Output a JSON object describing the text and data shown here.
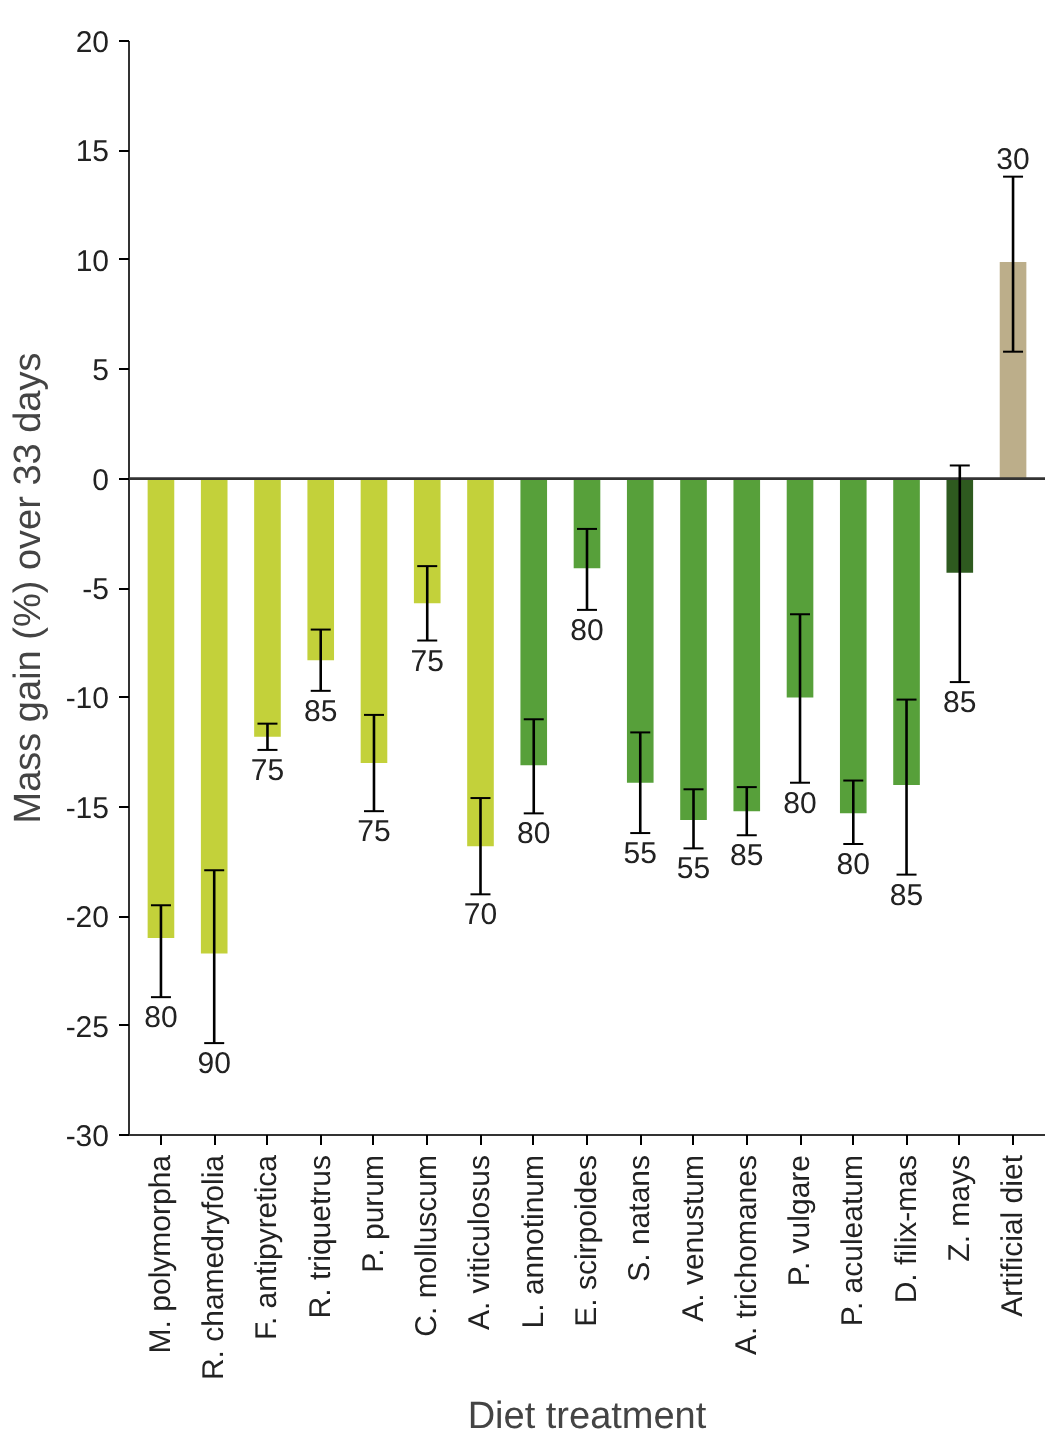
{
  "chart_data": {
    "type": "bar",
    "xlabel": "Diet treatment",
    "ylabel": "Mass gain (%) over 33 days",
    "categories": [
      "M. polymorpha",
      "R. chamedryfolia",
      "F. antipyretica",
      "R. triquetrus",
      "P. purum",
      "C. molluscum",
      "A. viticulosus",
      "L. annotinum",
      "E. scirpoides",
      "S. natans",
      "A. venustum",
      "A. trichomanes",
      "P. vulgare",
      "P. aculeatum",
      "D. filix-mas",
      "Z. mays",
      "Artificial diet"
    ],
    "values": [
      -21.0,
      -21.7,
      -11.8,
      -8.3,
      -13.0,
      -5.7,
      -16.8,
      -13.1,
      -4.1,
      -13.9,
      -15.6,
      -15.2,
      -10.0,
      -15.3,
      -14.0,
      -4.3,
      9.9
    ],
    "errors": [
      [
        -23.7,
        -19.5
      ],
      [
        -25.8,
        -17.9
      ],
      [
        -12.4,
        -11.2
      ],
      [
        -9.7,
        -6.9
      ],
      [
        -15.2,
        -10.8
      ],
      [
        -7.4,
        -4.0
      ],
      [
        -19.0,
        -14.6
      ],
      [
        -15.3,
        -11.0
      ],
      [
        -6.0,
        -2.3
      ],
      [
        -16.2,
        -11.6
      ],
      [
        -16.9,
        -14.2
      ],
      [
        -16.3,
        -14.1
      ],
      [
        -13.9,
        -6.2
      ],
      [
        -16.7,
        -13.8
      ],
      [
        -18.1,
        -10.1
      ],
      [
        -9.3,
        0.6
      ],
      [
        5.8,
        13.8
      ]
    ],
    "colors": [
      "#c3d13a",
      "#c3d13a",
      "#c3d13a",
      "#c3d13a",
      "#c3d13a",
      "#c3d13a",
      "#c3d13a",
      "#57a03a",
      "#57a03a",
      "#57a03a",
      "#57a03a",
      "#57a03a",
      "#57a03a",
      "#57a03a",
      "#57a03a",
      "#2e5a1f",
      "#bcae8a"
    ],
    "annotations": [
      {
        "text": "80",
        "x": "M. polymorpha",
        "y": -23.7
      },
      {
        "text": "90",
        "x": "R. chamedryfolia",
        "y": -25.8
      },
      {
        "text": "75",
        "x": "F. antipyretica",
        "y": -12.4
      },
      {
        "text": "85",
        "x": "R. triquetrus",
        "y": -9.7
      },
      {
        "text": "75",
        "x": "P. purum",
        "y": -15.2
      },
      {
        "text": "75",
        "x": "C. molluscum",
        "y": -7.4
      },
      {
        "text": "70",
        "x": "A. viticulosus",
        "y": -19.0
      },
      {
        "text": "80",
        "x": "L. annotinum",
        "y": -15.3
      },
      {
        "text": "80",
        "x": "E. scirpoides",
        "y": -6.0
      },
      {
        "text": "55",
        "x": "S. natans",
        "y": -16.2
      },
      {
        "text": "55",
        "x": "A. venustum",
        "y": -16.9
      },
      {
        "text": "85",
        "x": "A. trichomanes",
        "y": -16.3
      },
      {
        "text": "80",
        "x": "P. vulgare",
        "y": -13.9
      },
      {
        "text": "80",
        "x": "P. aculeatum",
        "y": -16.7
      },
      {
        "text": "85",
        "x": "D. filix-mas",
        "y": -18.1
      },
      {
        "text": "85",
        "x": "Z. mays",
        "y": -9.3
      },
      {
        "text": "30",
        "x": "Artificial diet",
        "y": 13.8
      }
    ],
    "ylim": [
      -30,
      20
    ],
    "yticks": [
      -30,
      -25,
      -20,
      -15,
      -10,
      -5,
      0,
      5,
      10,
      15,
      20
    ]
  }
}
